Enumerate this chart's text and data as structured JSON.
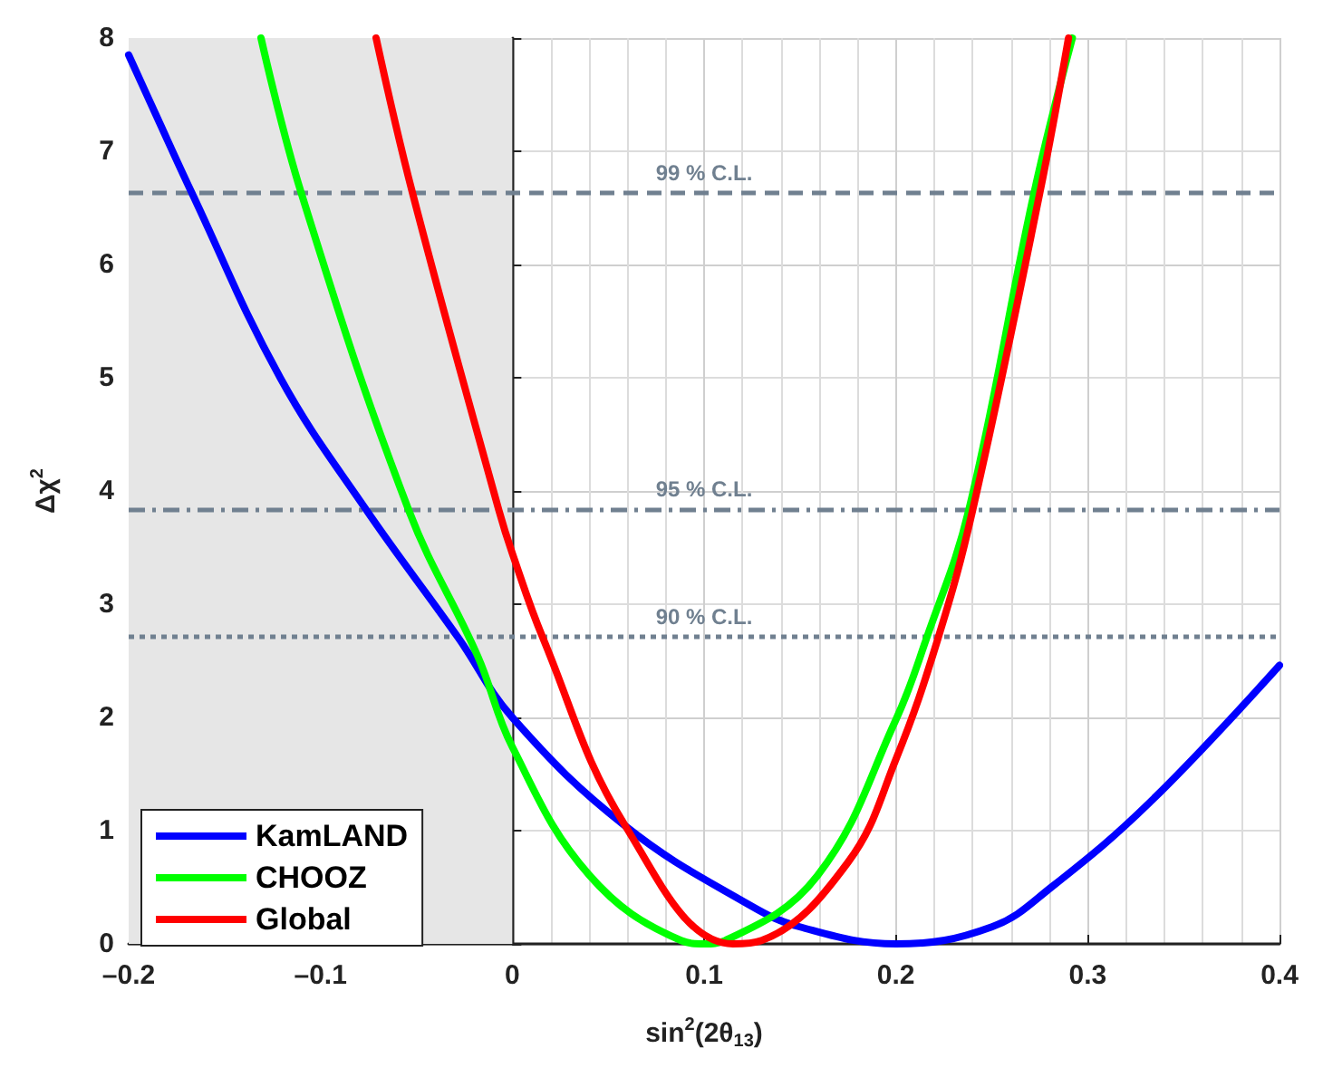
{
  "chart_data": {
    "type": "line",
    "xlabel": "sin$^{2}$(2θ$_{13}$)",
    "ylabel": "Δχ$^{2}$",
    "xlim": [
      -0.2,
      0.4
    ],
    "xticks": [
      {
        "value": -0.2,
        "label": "–0.2"
      },
      {
        "value": -0.1,
        "label": "–0.1"
      },
      0,
      0.1,
      0.2,
      0.3,
      0.4
    ],
    "ylim": [
      0,
      8
    ],
    "yticks": [
      0,
      1,
      2,
      3,
      4,
      5,
      6,
      7,
      8
    ],
    "grid": true,
    "legend": "bottom left",
    "marker": "none",
    "line_style": "solid",
    "series": [
      {
        "name": "KamLAND",
        "color": "#0000ff",
        "x": [
          -0.2,
          -0.186,
          -0.167,
          -0.121,
          -0.076,
          -0.028,
          0,
          0.059,
          0.123,
          0.15,
          0.2,
          0.25,
          0.281,
          0.333,
          0.4
        ],
        "values": [
          7.85,
          7.33,
          6.63,
          5.0,
          3.83,
          2.7,
          2.0,
          1.04,
          0.35,
          0.15,
          0,
          0.15,
          0.5,
          1.26,
          2.46
        ]
      },
      {
        "name": "CHOOZ",
        "color": "#00ff00",
        "x": [
          -0.131,
          -0.11,
          -0.054,
          -0.018,
          0,
          0.04,
          0.088,
          0.1,
          0.111,
          0.159,
          0.2,
          0.216,
          0.238,
          0.272,
          0.292
        ],
        "values": [
          8,
          6.63,
          3.83,
          2.54,
          1.74,
          0.61,
          0.03,
          0,
          0.03,
          0.6,
          1.98,
          2.7,
          3.83,
          6.63,
          8
        ]
      },
      {
        "name": "Global",
        "color": "#ff0000",
        "x": [
          -0.071,
          -0.052,
          -0.007,
          0,
          0.016,
          0.059,
          0.115,
          0.13,
          0.175,
          0.2,
          0.222,
          0.24,
          0.275,
          0.29
        ],
        "values": [
          8,
          6.63,
          3.83,
          3.45,
          2.7,
          1.04,
          0,
          0.03,
          0.72,
          1.63,
          2.7,
          3.83,
          6.63,
          8
        ]
      }
    ],
    "ref_lines": [
      {
        "axis": "y",
        "value": 6.63,
        "label": "99 % C.L.",
        "color": "#708090",
        "line_style": "dashed"
      },
      {
        "axis": "y",
        "value": 3.84,
        "label": "95 % C.L.",
        "color": "#708090",
        "line_style": "dashdot"
      },
      {
        "axis": "y",
        "value": 2.71,
        "label": "90 % C.L.",
        "color": "#708090",
        "line_style": "dotted"
      }
    ],
    "bands": [
      {
        "axis": "x",
        "from": -0.2,
        "to": 0,
        "color": "#e6e6e6"
      }
    ]
  }
}
